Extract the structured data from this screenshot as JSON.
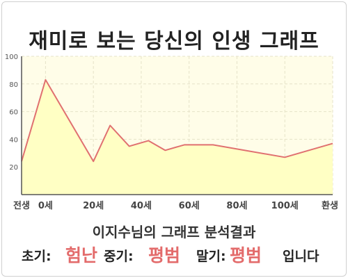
{
  "title": "재미로 보는 당신의 인생 그래프",
  "subtitle": "이지수님의 그래프 분석결과",
  "result": {
    "early_label": "초기:",
    "early_value": "험난",
    "middle_label": "중기:",
    "middle_value": "평범",
    "late_label": "말기:",
    "late_value": "평범",
    "ending": "입니다"
  },
  "colors": {
    "line": "#e07070",
    "fill": "#ffffc4",
    "plot_bg": "#fffde8",
    "accent": "#e36b6b"
  },
  "chart_data": {
    "type": "area",
    "title": "재미로 보는 당신의 인생 그래프",
    "xlabel": "",
    "ylabel": "",
    "xlim": [
      -10,
      120
    ],
    "ylim": [
      0,
      100
    ],
    "y_ticks": [
      20,
      40,
      60,
      80,
      100
    ],
    "x_ticks": [
      {
        "x": -10,
        "label": "전생"
      },
      {
        "x": 0,
        "label": "0세"
      },
      {
        "x": 20,
        "label": "20세"
      },
      {
        "x": 40,
        "label": "40세"
      },
      {
        "x": 60,
        "label": "60세"
      },
      {
        "x": 80,
        "label": "80세"
      },
      {
        "x": 100,
        "label": "100세"
      },
      {
        "x": 120,
        "label": "환생"
      }
    ],
    "grid": true,
    "series": [
      {
        "x": [
          -10,
          0,
          20,
          27,
          35,
          43,
          50,
          58,
          70,
          100,
          120
        ],
        "y": [
          24,
          83,
          24,
          50,
          35,
          39,
          32,
          36,
          36,
          27,
          37
        ]
      }
    ]
  }
}
